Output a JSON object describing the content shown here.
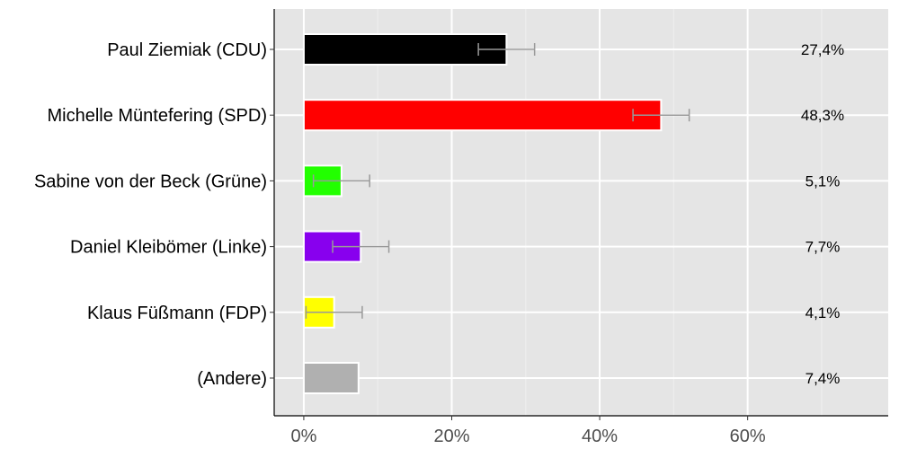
{
  "chart_data": {
    "type": "bar",
    "orientation": "horizontal",
    "title": "",
    "xlabel": "",
    "ylabel": "",
    "xlim": [
      -4,
      79
    ],
    "x_ticks": [
      0,
      20,
      40,
      60
    ],
    "x_tick_labels": [
      "0%",
      "20%",
      "40%",
      "60%"
    ],
    "grid": true,
    "categories": [
      "Paul Ziemiak (CDU)",
      "Michelle Müntefering (SPD)",
      "Sabine von der Beck (Grüne)",
      "Daniel Kleibömer (Linke)",
      "Klaus Füßmann (FDP)",
      "(Andere)"
    ],
    "values": [
      27.4,
      48.3,
      5.1,
      7.7,
      4.1,
      7.4
    ],
    "value_labels": [
      "27,4%",
      "48,3%",
      "5,1%",
      "7,7%",
      "4,1%",
      "7,4%"
    ],
    "colors": [
      "#000000",
      "#ff0000",
      "#22ff00",
      "#8800ee",
      "#ffff00",
      "#b0b0b0"
    ],
    "error_bars": [
      {
        "low": 23.6,
        "high": 31.2
      },
      {
        "low": 44.5,
        "high": 52.1
      },
      {
        "low": 1.3,
        "high": 8.9
      },
      {
        "low": 3.9,
        "high": 11.5
      },
      {
        "low": 0.3,
        "high": 7.9
      },
      null
    ]
  }
}
